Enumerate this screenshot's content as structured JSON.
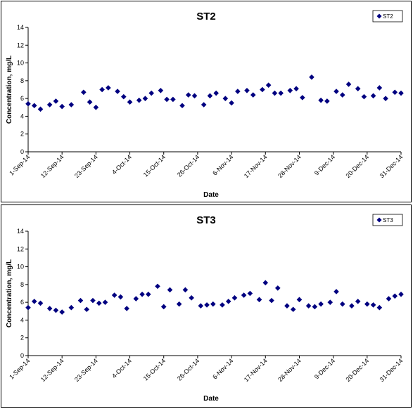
{
  "chart_data": [
    {
      "type": "scatter",
      "title": "ST2",
      "xlabel": "Date",
      "ylabel": "Concentration, mg/L",
      "ylim": [
        0,
        14
      ],
      "yticks": [
        "0",
        "2",
        "4",
        "6",
        "8",
        "10",
        "12",
        "14"
      ],
      "xlim": [
        "1-Sep-14",
        "31-Dec-14"
      ],
      "xticks": [
        "1-Sep-14",
        "12-Sep-14",
        "23-Sep-14",
        "4-Oct-14",
        "15-Oct-14",
        "26-Oct-14",
        "6-Nov-14",
        "17-Nov-14",
        "28-Nov-14",
        "9-Dec-14",
        "20-Dec-14",
        "31-Dec-14"
      ],
      "grid": false,
      "legend_position": "top-right",
      "marker_color": "#000080",
      "series": [
        {
          "name": "ST2",
          "x": [
            "1-Sep-14",
            "3-Sep-14",
            "5-Sep-14",
            "8-Sep-14",
            "10-Sep-14",
            "12-Sep-14",
            "15-Sep-14",
            "19-Sep-14",
            "21-Sep-14",
            "23-Sep-14",
            "25-Sep-14",
            "27-Sep-14",
            "30-Sep-14",
            "2-Oct-14",
            "4-Oct-14",
            "7-Oct-14",
            "9-Oct-14",
            "11-Oct-14",
            "14-Oct-14",
            "16-Oct-14",
            "18-Oct-14",
            "21-Oct-14",
            "23-Oct-14",
            "25-Oct-14",
            "28-Oct-14",
            "30-Oct-14",
            "1-Nov-14",
            "4-Nov-14",
            "6-Nov-14",
            "8-Nov-14",
            "11-Nov-14",
            "13-Nov-14",
            "16-Nov-14",
            "18-Nov-14",
            "20-Nov-14",
            "22-Nov-14",
            "25-Nov-14",
            "27-Nov-14",
            "29-Nov-14",
            "2-Dec-14",
            "5-Dec-14",
            "7-Dec-14",
            "10-Dec-14",
            "12-Dec-14",
            "14-Dec-14",
            "17-Dec-14",
            "19-Dec-14",
            "22-Dec-14",
            "24-Dec-14",
            "26-Dec-14",
            "29-Dec-14",
            "31-Dec-14"
          ],
          "y": [
            5.4,
            5.2,
            4.8,
            5.3,
            5.7,
            5.1,
            5.3,
            6.7,
            5.6,
            5.0,
            7.0,
            7.2,
            6.8,
            6.2,
            5.6,
            5.8,
            6.0,
            6.6,
            6.9,
            5.9,
            5.9,
            5.2,
            6.4,
            6.3,
            5.3,
            6.3,
            6.6,
            6.0,
            5.5,
            6.8,
            6.9,
            6.4,
            7.0,
            7.5,
            6.6,
            6.6,
            6.9,
            7.1,
            6.1,
            8.4,
            5.8,
            5.7,
            6.8,
            6.4,
            7.6,
            7.1,
            6.2,
            6.3,
            7.2,
            6.0,
            6.7,
            6.6
          ]
        }
      ]
    },
    {
      "type": "scatter",
      "title": "ST3",
      "xlabel": "Date",
      "ylabel": "Concentration, mg/L",
      "ylim": [
        0,
        14
      ],
      "yticks": [
        "0",
        "2",
        "4",
        "6",
        "8",
        "10",
        "12",
        "14"
      ],
      "xlim": [
        "1-Sep-14",
        "31-Dec-14"
      ],
      "xticks": [
        "1-Sep-14",
        "12-Sep-14",
        "23-Sep-14",
        "4-Oct-14",
        "15-Oct-14",
        "26-Oct-14",
        "6-Nov-14",
        "17-Nov-14",
        "28-Nov-14",
        "9-Dec-14",
        "20-Dec-14",
        "31-Dec-14"
      ],
      "grid": false,
      "legend_position": "top-right",
      "marker_color": "#000080",
      "series": [
        {
          "name": "ST3",
          "x": [
            "1-Sep-14",
            "3-Sep-14",
            "5-Sep-14",
            "8-Sep-14",
            "10-Sep-14",
            "12-Sep-14",
            "15-Sep-14",
            "18-Sep-14",
            "20-Sep-14",
            "22-Sep-14",
            "24-Sep-14",
            "26-Sep-14",
            "29-Sep-14",
            "1-Oct-14",
            "3-Oct-14",
            "6-Oct-14",
            "8-Oct-14",
            "10-Oct-14",
            "13-Oct-14",
            "15-Oct-14",
            "17-Oct-14",
            "20-Oct-14",
            "22-Oct-14",
            "24-Oct-14",
            "27-Oct-14",
            "29-Oct-14",
            "31-Oct-14",
            "3-Nov-14",
            "5-Nov-14",
            "7-Nov-14",
            "10-Nov-14",
            "12-Nov-14",
            "15-Nov-14",
            "17-Nov-14",
            "19-Nov-14",
            "21-Nov-14",
            "24-Nov-14",
            "26-Nov-14",
            "28-Nov-14",
            "1-Dec-14",
            "3-Dec-14",
            "5-Dec-14",
            "8-Dec-14",
            "10-Dec-14",
            "12-Dec-14",
            "15-Dec-14",
            "17-Dec-14",
            "20-Dec-14",
            "22-Dec-14",
            "24-Dec-14",
            "27-Dec-14",
            "29-Dec-14",
            "31-Dec-14"
          ],
          "y": [
            5.4,
            6.1,
            5.9,
            5.3,
            5.1,
            4.9,
            5.4,
            6.2,
            5.2,
            6.2,
            5.9,
            6.0,
            6.8,
            6.6,
            5.3,
            6.4,
            6.9,
            6.9,
            7.8,
            5.5,
            7.4,
            5.8,
            7.4,
            6.5,
            5.6,
            5.7,
            5.8,
            5.7,
            6.1,
            6.5,
            6.8,
            7.0,
            6.3,
            8.2,
            6.2,
            7.6,
            5.6,
            5.2,
            6.3,
            5.6,
            5.5,
            5.8,
            6.0,
            7.2,
            5.8,
            5.6,
            6.1,
            5.8,
            5.7,
            5.4,
            6.4,
            6.7,
            6.9
          ]
        }
      ]
    }
  ]
}
